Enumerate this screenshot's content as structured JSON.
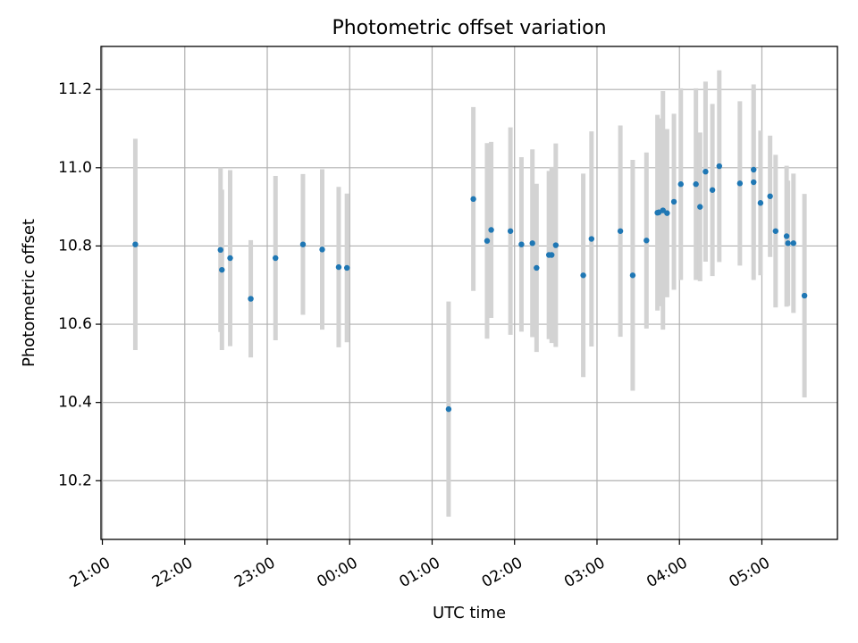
{
  "colors": {
    "point": "#1f77b4",
    "error_bar": "#d3d3d3",
    "grid": "#b0b0b0"
  },
  "chart_data": {
    "type": "scatter",
    "title": "Photometric offset variation",
    "xlabel": "UTC time",
    "ylabel": "Photometric offset",
    "grid": true,
    "x_axis": {
      "kind": "time",
      "range": [
        "20:59",
        "05:55"
      ],
      "ticks": [
        "21:00",
        "22:00",
        "23:00",
        "00:00",
        "01:00",
        "02:00",
        "03:00",
        "04:00",
        "05:00"
      ],
      "tick_label_rotation": "30 degrees"
    },
    "y_axis": {
      "range": [
        10.05,
        11.31
      ],
      "ticks": [
        "10.2",
        "10.4",
        "10.6",
        "10.8",
        "11.0",
        "11.2"
      ]
    },
    "series": [
      {
        "x": [
          "21:24",
          "22:26",
          "22:27",
          "22:33",
          "22:48",
          "23:06",
          "23:26",
          "23:40",
          "23:52",
          "23:58",
          "01:12",
          "01:30",
          "01:40",
          "01:43",
          "01:57",
          "02:05",
          "02:13",
          "02:16",
          "02:25",
          "02:27",
          "02:30",
          "02:50",
          "02:56",
          "03:17",
          "03:26",
          "03:36",
          "03:44",
          "03:45",
          "03:48",
          "03:51",
          "03:56",
          "04:01",
          "04:12",
          "04:15",
          "04:19",
          "04:24",
          "04:29",
          "04:44",
          "04:54",
          "04:54",
          "04:59",
          "05:06",
          "05:10",
          "05:18",
          "05:19",
          "05:23",
          "05:31"
        ],
        "y": [
          10.804,
          10.79,
          10.739,
          10.769,
          10.665,
          10.769,
          10.804,
          10.791,
          10.746,
          10.744,
          10.383,
          10.92,
          10.813,
          10.841,
          10.838,
          10.804,
          10.807,
          10.744,
          10.777,
          10.777,
          10.802,
          10.725,
          10.818,
          10.838,
          10.725,
          10.814,
          10.885,
          10.886,
          10.891,
          10.884,
          10.913,
          10.958,
          10.958,
          10.9,
          10.99,
          10.943,
          11.004,
          10.96,
          10.995,
          10.963,
          10.91,
          10.927,
          10.838,
          10.825,
          10.807,
          10.807,
          10.673
        ],
        "yerr": [
          0.27,
          0.21,
          0.205,
          0.225,
          0.15,
          0.21,
          0.18,
          0.205,
          0.205,
          0.19,
          0.275,
          0.235,
          0.25,
          0.225,
          0.265,
          0.223,
          0.24,
          0.215,
          0.215,
          0.225,
          0.26,
          0.26,
          0.275,
          0.27,
          0.295,
          0.225,
          0.25,
          0.24,
          0.305,
          0.215,
          0.225,
          0.245,
          0.245,
          0.19,
          0.23,
          0.22,
          0.245,
          0.21,
          0.205,
          0.25,
          0.185,
          0.155,
          0.195,
          0.18,
          0.16,
          0.178,
          0.26
        ]
      }
    ]
  }
}
